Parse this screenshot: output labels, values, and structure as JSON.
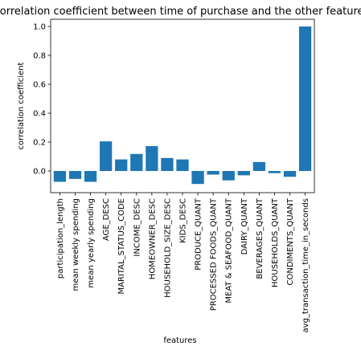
{
  "chart_data": {
    "type": "bar",
    "title": "Correlation coefficient between time of purchase and the other features",
    "xlabel": "features",
    "ylabel": "correlation coefficient",
    "ylim": [
      -0.15,
      1.05
    ],
    "yticks": [
      "0.0",
      "0.2",
      "0.4",
      "0.6",
      "0.8",
      "1.0"
    ],
    "bar_color": "#1f77b4",
    "grid": false,
    "categories": [
      "participation_length",
      "mean weekly spending",
      "mean yearly spending",
      "AGE_DESC",
      "MARITAL_STATUS_CODE",
      "INCOME_DESC",
      "HOMEOWNER_DESC",
      "HOUSEHOLD_SIZE_DESC",
      "KIDS_DESC",
      "PRODUCE_QUANT",
      "PROCESSED FOODS_QUANT",
      "MEAT & SEAFOOD_QUANT",
      "DAIRY_QUANT",
      "BEVERAGES_QUANT",
      "HOUSEHOLDS_QUANT",
      "CONDIMENTS_QUANT",
      "avg_transaction_time_in_seconds"
    ],
    "values": [
      -0.075,
      -0.055,
      -0.075,
      0.205,
      0.08,
      0.118,
      0.172,
      0.09,
      0.08,
      -0.09,
      -0.025,
      -0.065,
      -0.03,
      0.062,
      -0.015,
      -0.04,
      1.0
    ]
  }
}
